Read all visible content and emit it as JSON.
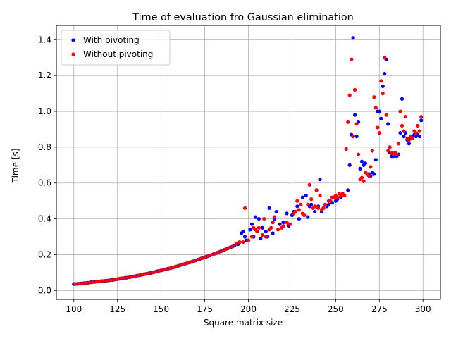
{
  "chart_data": {
    "type": "scatter",
    "title": "Time of evaluation fro Gaussian elimination",
    "xlabel": "Square matrix size",
    "ylabel": "Time [s]",
    "xlim": [
      90,
      310
    ],
    "ylim": [
      -0.05,
      1.48
    ],
    "xticks": [
      100,
      125,
      150,
      175,
      200,
      225,
      250,
      275,
      300
    ],
    "yticks": [
      0.0,
      0.2,
      0.4,
      0.6,
      0.8,
      1.0,
      1.2,
      1.4
    ],
    "xtick_labels": [
      "100",
      "125",
      "150",
      "175",
      "200",
      "225",
      "250",
      "275",
      "300"
    ],
    "ytick_labels": [
      "0.0",
      "0.2",
      "0.4",
      "0.6",
      "0.8",
      "1.0",
      "1.2",
      "1.4"
    ],
    "grid": true,
    "legend_position": "top-left",
    "series": [
      {
        "name": "With pivoting",
        "color": "#0000ff",
        "points": [
          [
            100,
            0.036
          ],
          [
            102,
            0.037
          ],
          [
            104,
            0.039
          ],
          [
            106,
            0.041
          ],
          [
            108,
            0.043
          ],
          [
            110,
            0.046
          ],
          [
            112,
            0.048
          ],
          [
            114,
            0.05
          ],
          [
            116,
            0.052
          ],
          [
            118,
            0.054
          ],
          [
            120,
            0.056
          ],
          [
            122,
            0.059
          ],
          [
            124,
            0.062
          ],
          [
            126,
            0.065
          ],
          [
            128,
            0.068
          ],
          [
            130,
            0.071
          ],
          [
            132,
            0.074
          ],
          [
            134,
            0.078
          ],
          [
            136,
            0.082
          ],
          [
            138,
            0.086
          ],
          [
            140,
            0.09
          ],
          [
            142,
            0.094
          ],
          [
            144,
            0.098
          ],
          [
            146,
            0.103
          ],
          [
            148,
            0.108
          ],
          [
            150,
            0.112
          ],
          [
            152,
            0.117
          ],
          [
            154,
            0.122
          ],
          [
            156,
            0.127
          ],
          [
            158,
            0.132
          ],
          [
            160,
            0.138
          ],
          [
            162,
            0.144
          ],
          [
            164,
            0.15
          ],
          [
            166,
            0.156
          ],
          [
            168,
            0.162
          ],
          [
            170,
            0.168
          ],
          [
            172,
            0.175
          ],
          [
            174,
            0.182
          ],
          [
            176,
            0.189
          ],
          [
            178,
            0.196
          ],
          [
            180,
            0.203
          ],
          [
            182,
            0.21
          ],
          [
            184,
            0.218
          ],
          [
            186,
            0.226
          ],
          [
            188,
            0.234
          ],
          [
            190,
            0.242
          ],
          [
            192,
            0.25
          ],
          [
            194,
            0.258
          ],
          [
            196,
            0.32
          ],
          [
            197,
            0.33
          ],
          [
            198,
            0.3
          ],
          [
            199,
            0.28
          ],
          [
            201,
            0.34
          ],
          [
            202,
            0.37
          ],
          [
            203,
            0.3
          ],
          [
            204,
            0.41
          ],
          [
            206,
            0.4
          ],
          [
            207,
            0.29
          ],
          [
            208,
            0.35
          ],
          [
            210,
            0.33
          ],
          [
            211,
            0.3
          ],
          [
            212,
            0.46
          ],
          [
            214,
            0.32
          ],
          [
            215,
            0.4
          ],
          [
            216,
            0.44
          ],
          [
            218,
            0.37
          ],
          [
            220,
            0.38
          ],
          [
            222,
            0.43
          ],
          [
            223,
            0.36
          ],
          [
            225,
            0.42
          ],
          [
            226,
            0.44
          ],
          [
            228,
            0.47
          ],
          [
            229,
            0.4
          ],
          [
            231,
            0.52
          ],
          [
            233,
            0.53
          ],
          [
            234,
            0.41
          ],
          [
            235,
            0.47
          ],
          [
            236,
            0.48
          ],
          [
            238,
            0.44
          ],
          [
            239,
            0.56
          ],
          [
            240,
            0.47
          ],
          [
            241,
            0.62
          ],
          [
            242,
            0.44
          ],
          [
            243,
            0.46
          ],
          [
            245,
            0.47
          ],
          [
            246,
            0.48
          ],
          [
            248,
            0.49
          ],
          [
            250,
            0.5
          ],
          [
            251,
            0.51
          ],
          [
            253,
            0.52
          ],
          [
            255,
            0.53
          ],
          [
            257,
            0.56
          ],
          [
            258,
            0.7
          ],
          [
            259,
            0.87
          ],
          [
            260,
            1.41
          ],
          [
            261,
            0.98
          ],
          [
            262,
            0.86
          ],
          [
            263,
            0.94
          ],
          [
            264,
            0.68
          ],
          [
            265,
            0.72
          ],
          [
            266,
            0.7
          ],
          [
            267,
            0.71
          ],
          [
            268,
            0.65
          ],
          [
            269,
            0.65
          ],
          [
            270,
            0.64
          ],
          [
            271,
            0.66
          ],
          [
            272,
            0.65
          ],
          [
            273,
            0.73
          ],
          [
            274,
            1.0
          ],
          [
            275,
            1.0
          ],
          [
            276,
            0.96
          ],
          [
            277,
            1.14
          ],
          [
            278,
            1.21
          ],
          [
            279,
            1.29
          ],
          [
            280,
            0.93
          ],
          [
            281,
            0.77
          ],
          [
            282,
            0.75
          ],
          [
            283,
            0.75
          ],
          [
            284,
            0.77
          ],
          [
            285,
            0.75
          ],
          [
            286,
            0.76
          ],
          [
            287,
            0.88
          ],
          [
            288,
            1.07
          ],
          [
            289,
            0.86
          ],
          [
            290,
            0.88
          ],
          [
            291,
            0.84
          ],
          [
            292,
            0.82
          ],
          [
            293,
            0.85
          ],
          [
            294,
            0.86
          ],
          [
            295,
            0.87
          ],
          [
            296,
            0.86
          ],
          [
            297,
            0.87
          ],
          [
            298,
            0.86
          ],
          [
            299,
            0.95
          ]
        ]
      },
      {
        "name": "Without pivoting",
        "color": "#ff0000",
        "points": [
          [
            101,
            0.036
          ],
          [
            103,
            0.038
          ],
          [
            105,
            0.04
          ],
          [
            107,
            0.042
          ],
          [
            109,
            0.044
          ],
          [
            111,
            0.047
          ],
          [
            113,
            0.049
          ],
          [
            115,
            0.051
          ],
          [
            117,
            0.053
          ],
          [
            119,
            0.055
          ],
          [
            121,
            0.058
          ],
          [
            123,
            0.06
          ],
          [
            125,
            0.063
          ],
          [
            127,
            0.068
          ],
          [
            129,
            0.07
          ],
          [
            131,
            0.073
          ],
          [
            133,
            0.076
          ],
          [
            135,
            0.08
          ],
          [
            137,
            0.084
          ],
          [
            139,
            0.088
          ],
          [
            141,
            0.092
          ],
          [
            143,
            0.096
          ],
          [
            145,
            0.1
          ],
          [
            147,
            0.105
          ],
          [
            149,
            0.11
          ],
          [
            151,
            0.114
          ],
          [
            153,
            0.119
          ],
          [
            155,
            0.124
          ],
          [
            157,
            0.129
          ],
          [
            159,
            0.135
          ],
          [
            161,
            0.141
          ],
          [
            163,
            0.147
          ],
          [
            165,
            0.153
          ],
          [
            167,
            0.159
          ],
          [
            169,
            0.165
          ],
          [
            171,
            0.172
          ],
          [
            173,
            0.179
          ],
          [
            175,
            0.186
          ],
          [
            177,
            0.192
          ],
          [
            179,
            0.199
          ],
          [
            181,
            0.206
          ],
          [
            183,
            0.214
          ],
          [
            185,
            0.222
          ],
          [
            187,
            0.23
          ],
          [
            189,
            0.238
          ],
          [
            191,
            0.246
          ],
          [
            193,
            0.26
          ],
          [
            195,
            0.27
          ],
          [
            197,
            0.27
          ],
          [
            198,
            0.46
          ],
          [
            200,
            0.28
          ],
          [
            202,
            0.3
          ],
          [
            203,
            0.35
          ],
          [
            204,
            0.34
          ],
          [
            205,
            0.33
          ],
          [
            206,
            0.35
          ],
          [
            208,
            0.31
          ],
          [
            209,
            0.4
          ],
          [
            210,
            0.3
          ],
          [
            212,
            0.34
          ],
          [
            213,
            0.35
          ],
          [
            214,
            0.38
          ],
          [
            215,
            0.41
          ],
          [
            217,
            0.34
          ],
          [
            219,
            0.35
          ],
          [
            220,
            0.36
          ],
          [
            222,
            0.38
          ],
          [
            223,
            0.37
          ],
          [
            224,
            0.37
          ],
          [
            226,
            0.43
          ],
          [
            227,
            0.44
          ],
          [
            228,
            0.5
          ],
          [
            229,
            0.45
          ],
          [
            230,
            0.48
          ],
          [
            231,
            0.43
          ],
          [
            232,
            0.42
          ],
          [
            234,
            0.48
          ],
          [
            235,
            0.59
          ],
          [
            236,
            0.51
          ],
          [
            237,
            0.46
          ],
          [
            238,
            0.47
          ],
          [
            239,
            0.56
          ],
          [
            240,
            0.46
          ],
          [
            241,
            0.53
          ],
          [
            242,
            0.45
          ],
          [
            243,
            0.46
          ],
          [
            244,
            0.48
          ],
          [
            246,
            0.5
          ],
          [
            247,
            0.5
          ],
          [
            248,
            0.52
          ],
          [
            249,
            0.52
          ],
          [
            250,
            0.53
          ],
          [
            251,
            0.52
          ],
          [
            252,
            0.54
          ],
          [
            253,
            0.53
          ],
          [
            254,
            0.54
          ],
          [
            255,
            0.53
          ],
          [
            256,
            0.79
          ],
          [
            257,
            0.94
          ],
          [
            258,
            1.09
          ],
          [
            259,
            1.29
          ],
          [
            260,
            0.86
          ],
          [
            261,
            1.12
          ],
          [
            262,
            0.93
          ],
          [
            263,
            0.76
          ],
          [
            264,
            0.62
          ],
          [
            265,
            0.63
          ],
          [
            266,
            0.61
          ],
          [
            267,
            0.66
          ],
          [
            268,
            0.65
          ],
          [
            269,
            0.64
          ],
          [
            270,
            0.69
          ],
          [
            271,
            0.78
          ],
          [
            272,
            1.08
          ],
          [
            273,
            1.02
          ],
          [
            274,
            0.91
          ],
          [
            275,
            0.88
          ],
          [
            276,
            1.17
          ],
          [
            277,
            1.1
          ],
          [
            278,
            1.3
          ],
          [
            279,
            0.98
          ],
          [
            280,
            0.78
          ],
          [
            281,
            0.8
          ],
          [
            282,
            0.77
          ],
          [
            283,
            0.76
          ],
          [
            284,
            0.77
          ],
          [
            285,
            0.76
          ],
          [
            286,
            0.82
          ],
          [
            287,
            1.0
          ],
          [
            288,
            0.92
          ],
          [
            289,
            0.89
          ],
          [
            290,
            0.97
          ],
          [
            291,
            0.85
          ],
          [
            292,
            0.84
          ],
          [
            293,
            0.86
          ],
          [
            294,
            0.85
          ],
          [
            295,
            0.89
          ],
          [
            296,
            0.88
          ],
          [
            297,
            0.92
          ],
          [
            298,
            0.89
          ],
          [
            299,
            0.97
          ]
        ]
      }
    ]
  }
}
